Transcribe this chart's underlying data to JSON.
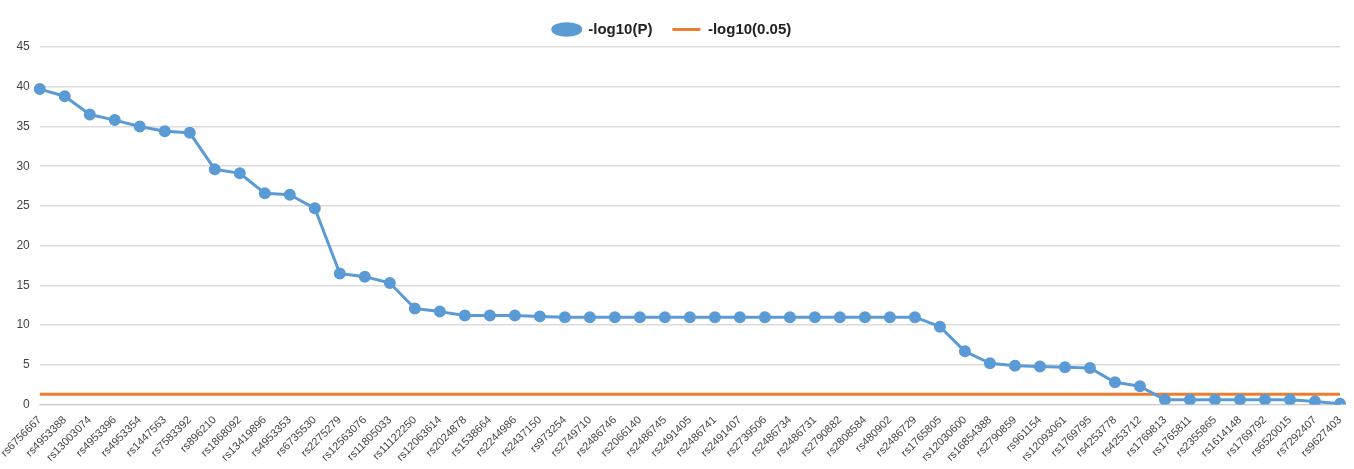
{
  "chart_data": {
    "type": "line",
    "categories": [
      "rs6756667",
      "rs4953388",
      "rs13003074",
      "rs4953396",
      "rs4953354",
      "rs1447563",
      "rs7583392",
      "rs896210",
      "rs1868092",
      "rs13419896",
      "rs4953353",
      "rs6735530",
      "rs2275279",
      "rs12563076",
      "rs11805033",
      "rs11122250",
      "rs12063614",
      "rs2024878",
      "rs1538664",
      "rs2244986",
      "rs2437150",
      "rs973254",
      "rs2749710",
      "rs2486746",
      "rs2066140",
      "rs2486745",
      "rs2491405",
      "rs2486741",
      "rs2491407",
      "rs2739506",
      "rs2486734",
      "rs2486731",
      "rs2790882",
      "rs2808584",
      "rs480902",
      "rs2486729",
      "rs1765805",
      "rs12030600",
      "rs16854388",
      "rs2790859",
      "rs961154",
      "rs12093061",
      "rs1769795",
      "rs4253778",
      "rs4253712",
      "rs1769813",
      "rs1765811",
      "rs2355865",
      "rs1614148",
      "rs1769792",
      "rs6520015",
      "rs7292407",
      "rs9627403"
    ],
    "series": [
      {
        "name": "-log10(P)",
        "color": "#5b9bd5",
        "marker": "circle",
        "values": [
          39.7,
          38.8,
          36.5,
          35.8,
          35.0,
          34.4,
          34.2,
          29.6,
          29.1,
          26.6,
          26.4,
          24.7,
          16.5,
          16.1,
          15.3,
          12.1,
          11.7,
          11.2,
          11.2,
          11.2,
          11.1,
          11.0,
          11.0,
          11.0,
          11.0,
          11.0,
          11.0,
          11.0,
          11.0,
          11.0,
          11.0,
          11.0,
          11.0,
          11.0,
          11.0,
          11.0,
          9.8,
          6.7,
          5.2,
          4.9,
          4.8,
          4.7,
          4.6,
          2.8,
          2.3,
          0.6,
          0.6,
          0.6,
          0.6,
          0.6,
          0.6,
          0.4,
          0.1
        ]
      },
      {
        "name": "-log10(0.05)",
        "color": "#ed7d31",
        "marker": "none",
        "values": [
          1.3,
          1.3,
          1.3,
          1.3,
          1.3,
          1.3,
          1.3,
          1.3,
          1.3,
          1.3,
          1.3,
          1.3,
          1.3,
          1.3,
          1.3,
          1.3,
          1.3,
          1.3,
          1.3,
          1.3,
          1.3,
          1.3,
          1.3,
          1.3,
          1.3,
          1.3,
          1.3,
          1.3,
          1.3,
          1.3,
          1.3,
          1.3,
          1.3,
          1.3,
          1.3,
          1.3,
          1.3,
          1.3,
          1.3,
          1.3,
          1.3,
          1.3,
          1.3,
          1.3,
          1.3,
          1.3,
          1.3,
          1.3,
          1.3,
          1.3,
          1.3,
          1.3,
          1.3
        ]
      }
    ],
    "ylim": [
      0,
      45
    ],
    "yticks": [
      0,
      5,
      10,
      15,
      20,
      25,
      30,
      35,
      40,
      45
    ],
    "grid": "y",
    "legend": "top"
  }
}
